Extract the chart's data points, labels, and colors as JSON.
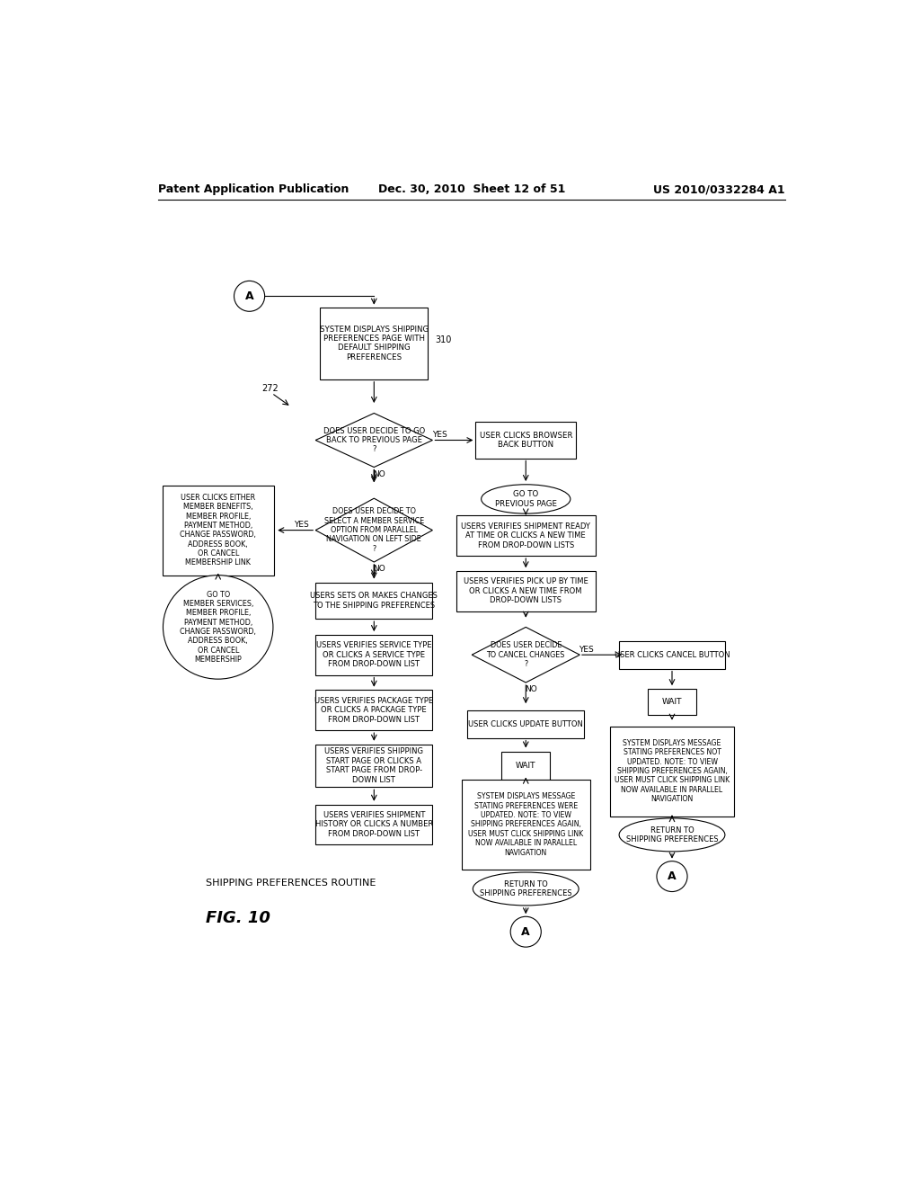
{
  "header_left": "Patent Application Publication",
  "header_center": "Dec. 30, 2010  Sheet 12 of 51",
  "header_right": "US 2010/0332284 A1",
  "figure_label": "FIG. 10",
  "caption": "SHIPPING PREFERENCES ROUTINE",
  "background_color": "#ffffff"
}
